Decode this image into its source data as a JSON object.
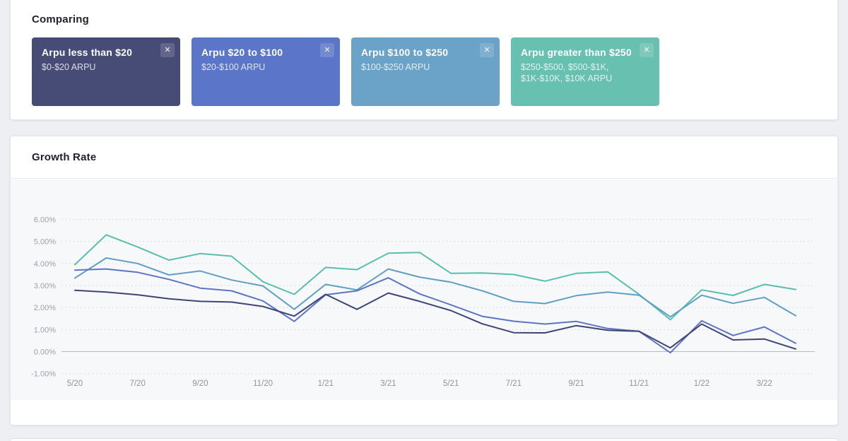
{
  "icons": {
    "close": "✕"
  },
  "comparing": {
    "title": "Comparing",
    "cards": [
      {
        "title": "Arpu less than $20",
        "subtitle": "$0-$20 ARPU",
        "color": "#474c77"
      },
      {
        "title": "Arpu $20 to $100",
        "subtitle": "$20-$100 ARPU",
        "color": "#5b76c8"
      },
      {
        "title": "Arpu $100 to $250",
        "subtitle": "$100-$250 ARPU",
        "color": "#6aa2c8"
      },
      {
        "title": "Arpu greater than $250",
        "subtitle": "$250-$500, $500-$1K, $1K-$10K, $10K ARPU",
        "color": "#68c0b0"
      }
    ]
  },
  "growth": {
    "title": "Growth Rate"
  },
  "chart_data": {
    "type": "line",
    "title": "Growth Rate",
    "x": [
      "5/20",
      "6/20",
      "7/20",
      "8/20",
      "9/20",
      "10/20",
      "11/20",
      "12/20",
      "1/21",
      "2/21",
      "3/21",
      "4/21",
      "5/21",
      "6/21",
      "7/21",
      "8/21",
      "9/21",
      "10/21",
      "11/21",
      "12/21",
      "1/22",
      "2/22",
      "3/22",
      "4/22"
    ],
    "x_tick_labels": [
      "5/20",
      "7/20",
      "9/20",
      "11/20",
      "1/21",
      "3/21",
      "5/21",
      "7/21",
      "9/21",
      "11/21",
      "1/22",
      "3/22"
    ],
    "x_tick_every": 2,
    "ylim": [
      -1,
      6
    ],
    "yticks": [
      {
        "v": 6,
        "label": "6.00%"
      },
      {
        "v": 5,
        "label": "5.00%"
      },
      {
        "v": 4,
        "label": "4.00%"
      },
      {
        "v": 3,
        "label": "3.00%"
      },
      {
        "v": 2,
        "label": "2.00%"
      },
      {
        "v": 1,
        "label": "1.00%"
      },
      {
        "v": 0,
        "label": "0.00%"
      },
      {
        "v": -1,
        "label": "-1.00%"
      }
    ],
    "grid": "horizontal-dashed, zero-line-solid",
    "legend_position": "none (colors match ARPU cards above)",
    "series": [
      {
        "name": "Arpu greater than $250",
        "color": "#57bfab",
        "values": [
          3.95,
          5.3,
          4.75,
          4.15,
          4.45,
          4.33,
          3.17,
          2.6,
          3.82,
          3.72,
          4.47,
          4.5,
          3.55,
          3.57,
          3.5,
          3.2,
          3.55,
          3.62,
          2.6,
          1.45,
          2.8,
          2.55,
          3.05,
          2.82
        ]
      },
      {
        "name": "Arpu $100 to $250",
        "color": "#5f9fc6",
        "values": [
          3.34,
          4.25,
          4.0,
          3.48,
          3.66,
          3.25,
          2.98,
          1.92,
          3.05,
          2.8,
          3.75,
          3.38,
          3.15,
          2.76,
          2.28,
          2.18,
          2.54,
          2.7,
          2.56,
          1.58,
          2.56,
          2.19,
          2.46,
          1.63
        ]
      },
      {
        "name": "Arpu $20 to $100",
        "color": "#5b74c6",
        "values": [
          3.7,
          3.75,
          3.6,
          3.28,
          2.88,
          2.76,
          2.3,
          1.37,
          2.58,
          2.76,
          3.35,
          2.62,
          2.12,
          1.6,
          1.38,
          1.25,
          1.37,
          1.05,
          0.92,
          -0.05,
          1.4,
          0.73,
          1.12,
          0.38
        ]
      },
      {
        "name": "Arpu less than $20",
        "color": "#3e4473",
        "values": [
          2.78,
          2.7,
          2.58,
          2.4,
          2.28,
          2.25,
          2.05,
          1.61,
          2.6,
          1.92,
          2.66,
          2.28,
          1.86,
          1.26,
          0.86,
          0.85,
          1.18,
          0.97,
          0.92,
          0.17,
          1.25,
          0.53,
          0.57,
          0.12
        ]
      }
    ]
  }
}
